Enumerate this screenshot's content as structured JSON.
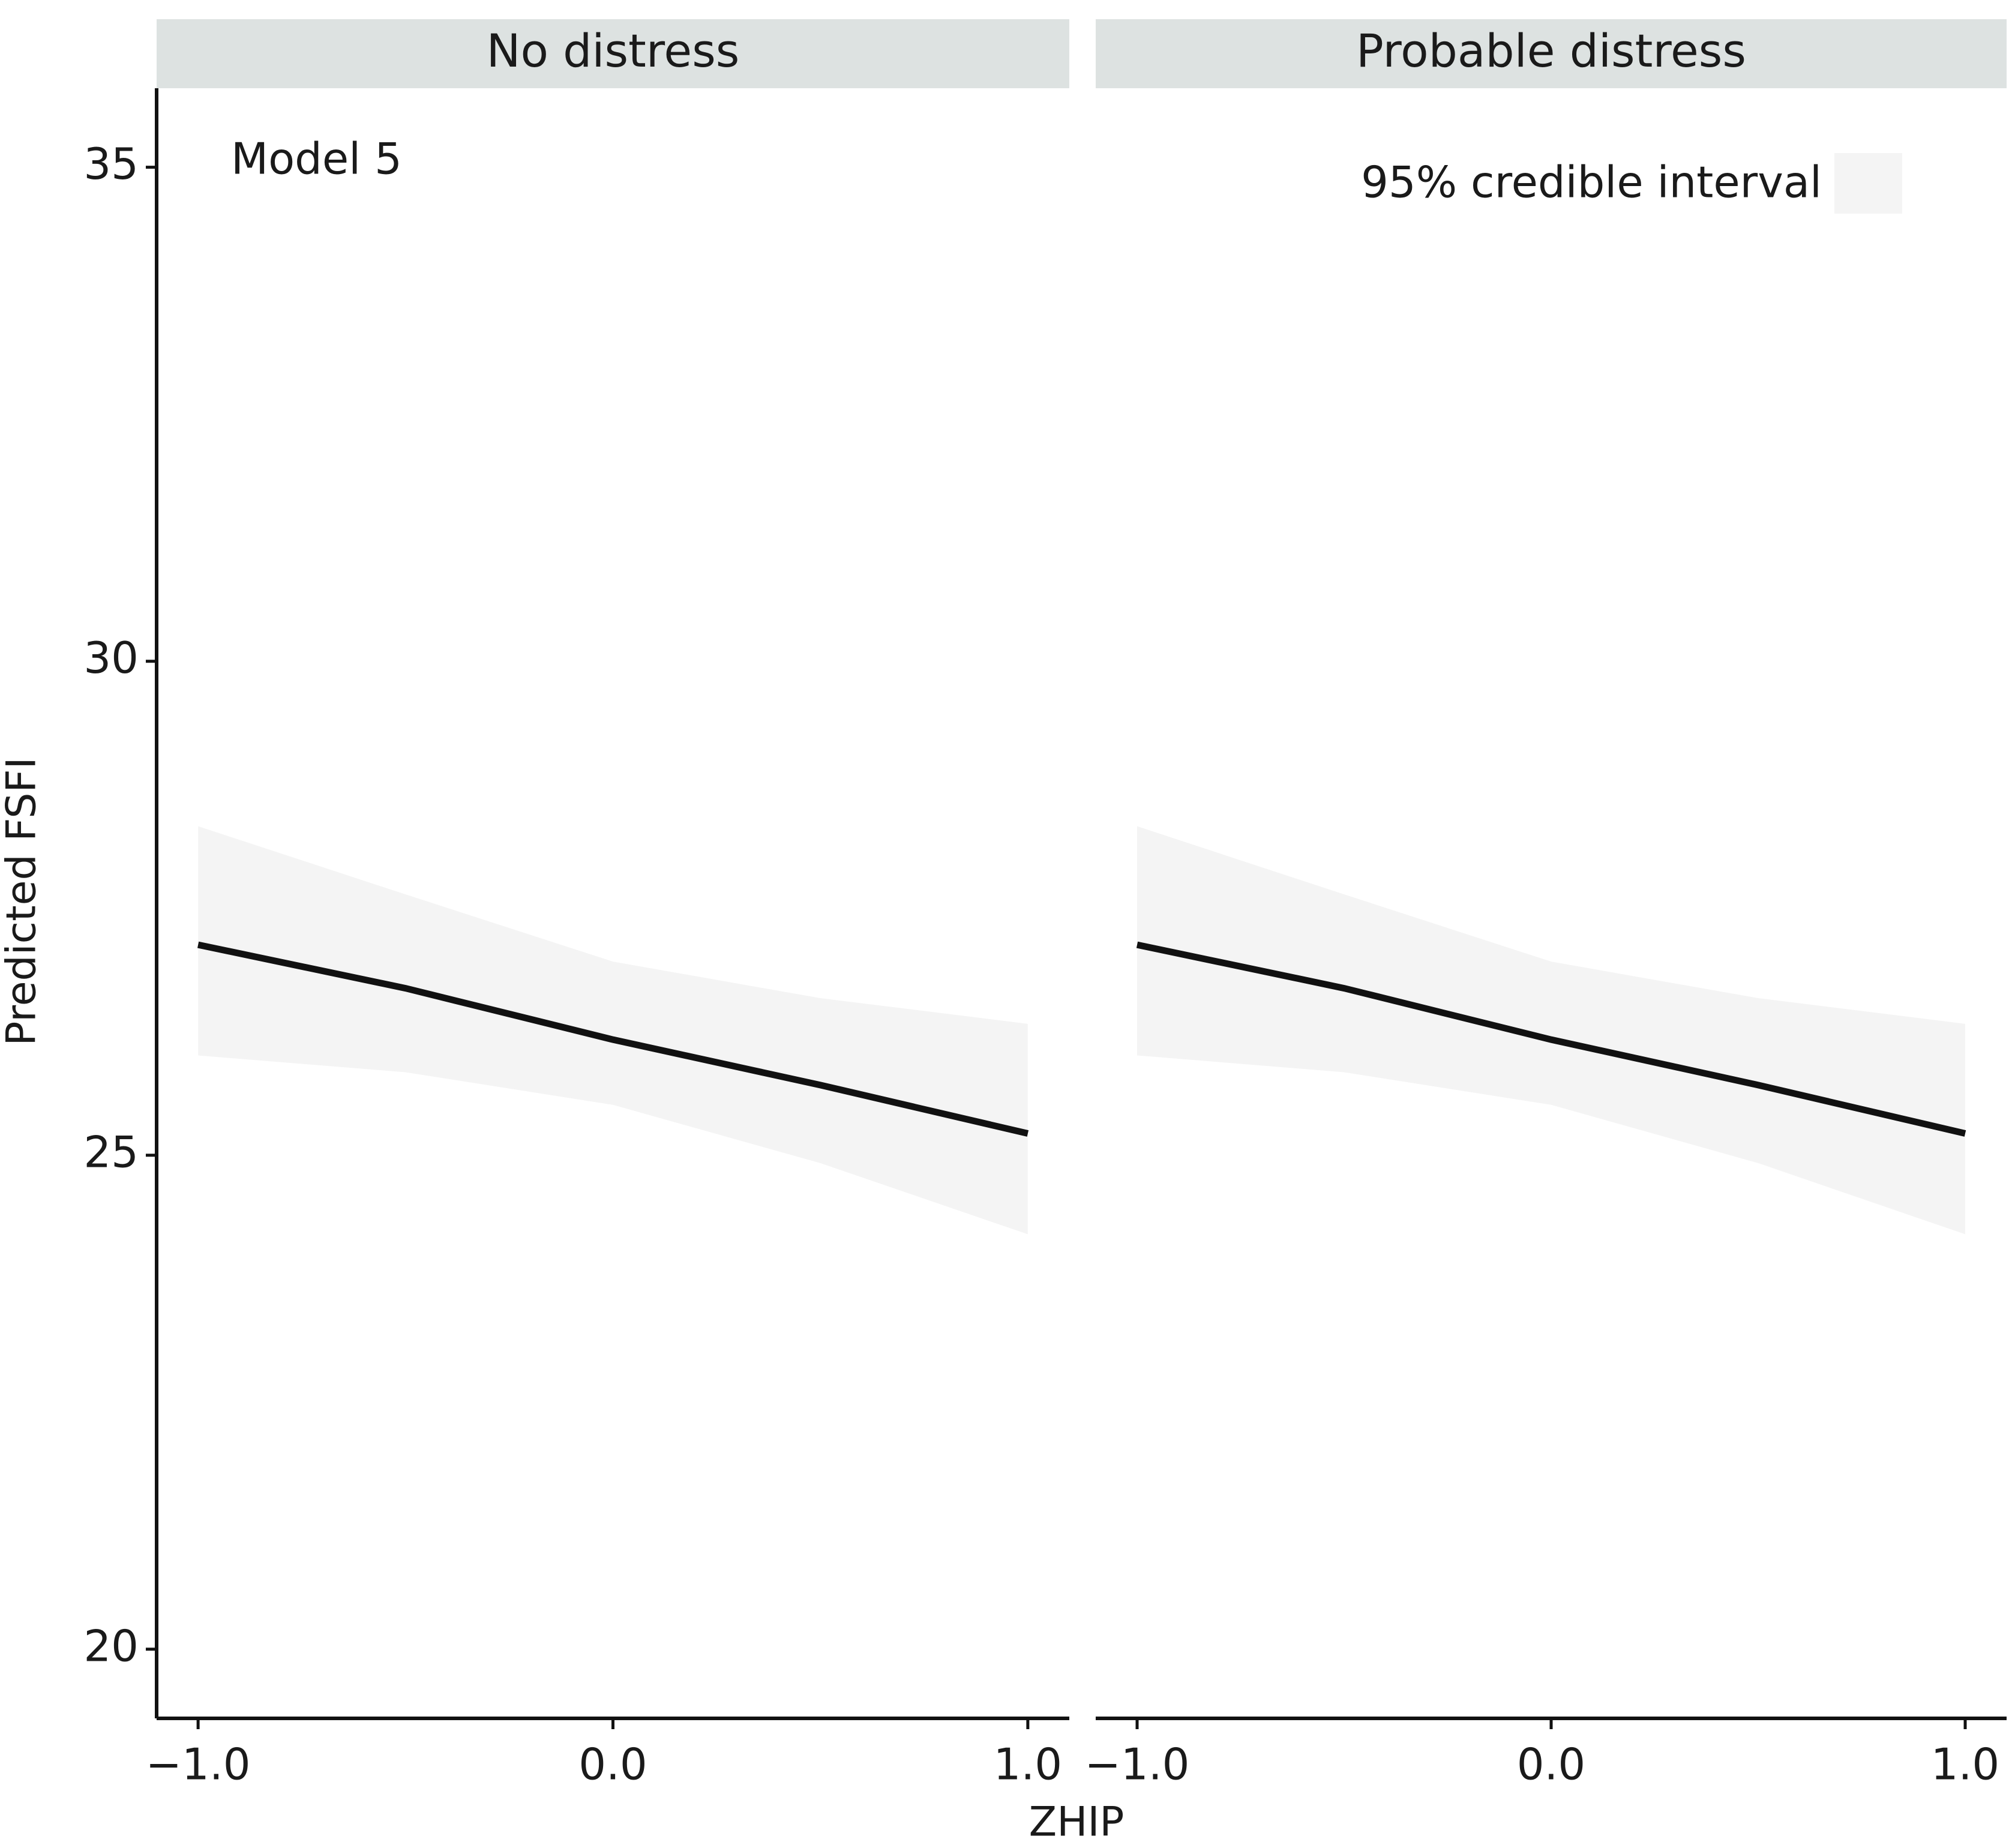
{
  "chart_data": {
    "type": "line",
    "xlabel": "ZHIP",
    "ylabel": "Predicted FSFI",
    "xlim": [
      -1.1,
      1.1
    ],
    "xticks": [
      {
        "value": -1,
        "label": "−1.0"
      },
      {
        "value": 0,
        "label": "0.0"
      },
      {
        "value": 1,
        "label": "1.0"
      }
    ],
    "ylim": [
      19.3,
      35.8
    ],
    "yticks": [
      20,
      25,
      30,
      35
    ],
    "facets": [
      {
        "title": "No distress",
        "annotation": "Model 5",
        "x": [
          -1,
          -0.5,
          0,
          0.5,
          1
        ],
        "series": [
          {
            "color": "#111111",
            "values": [
              27.13,
              26.69,
              26.17,
              25.71,
              25.22
            ]
          }
        ],
        "band": {
          "color": "#f4f4f4",
          "lower": [
            26.01,
            25.84,
            25.51,
            24.92,
            24.2
          ],
          "upper": [
            28.33,
            27.64,
            26.96,
            26.59,
            26.33
          ]
        }
      },
      {
        "title": "Probable distress",
        "x": [
          -1,
          -0.5,
          0,
          0.5,
          1
        ],
        "series": [
          {
            "color": "#111111",
            "values": [
              27.13,
              26.69,
              26.17,
              25.71,
              25.22
            ]
          }
        ],
        "band": {
          "name": "95% credible interval",
          "color": "#f4f4f4",
          "lower": [
            26.01,
            25.84,
            25.51,
            24.92,
            24.2
          ],
          "upper": [
            28.33,
            27.64,
            26.96,
            26.59,
            26.33
          ]
        }
      }
    ]
  }
}
